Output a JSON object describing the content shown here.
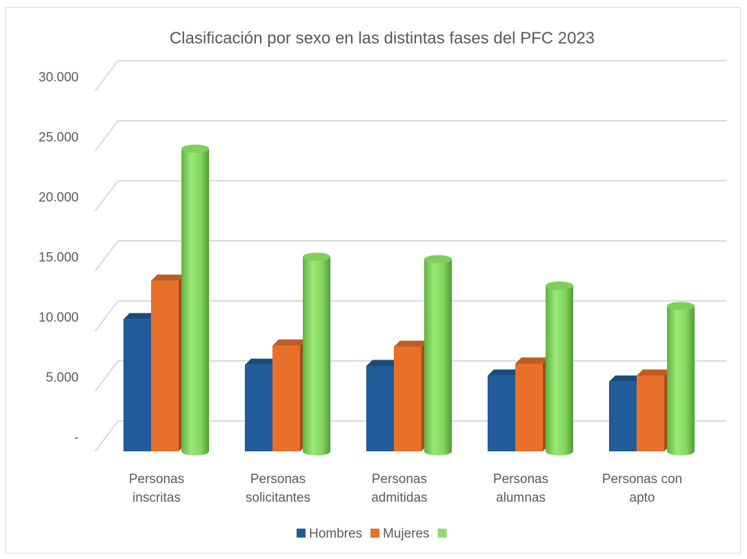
{
  "chart_data": {
    "type": "bar",
    "title": "Clasificación por sexo en las distintas fases del PFC 2023",
    "categories": [
      [
        "Personas",
        "inscritas"
      ],
      [
        "Personas",
        "solicitantes"
      ],
      [
        "Personas",
        "admitidas"
      ],
      [
        "Personas",
        "alumnas"
      ],
      [
        "Personas con",
        "apto"
      ]
    ],
    "series": [
      {
        "name": "Hombres",
        "color": "#1f5c99",
        "shape": "box",
        "values": [
          11000,
          7200,
          7100,
          6300,
          5800
        ]
      },
      {
        "name": "Mujeres",
        "color": "#e8702a",
        "shape": "box",
        "values": [
          14200,
          8800,
          8700,
          7300,
          6300
        ]
      },
      {
        "name": "",
        "color": "#8fdc6a",
        "shape": "cylinder",
        "values": [
          25200,
          16200,
          16000,
          13800,
          12100
        ]
      }
    ],
    "ylim": [
      0,
      30000
    ],
    "yticks": [
      {
        "value": 0,
        "label": "-"
      },
      {
        "value": 5000,
        "label": "5.000"
      },
      {
        "value": 10000,
        "label": "10.000"
      },
      {
        "value": 15000,
        "label": "15.000"
      },
      {
        "value": 20000,
        "label": "20.000"
      },
      {
        "value": 25000,
        "label": "25.000"
      },
      {
        "value": 30000,
        "label": "30.000"
      }
    ],
    "grid": true,
    "legend_position": "bottom"
  }
}
